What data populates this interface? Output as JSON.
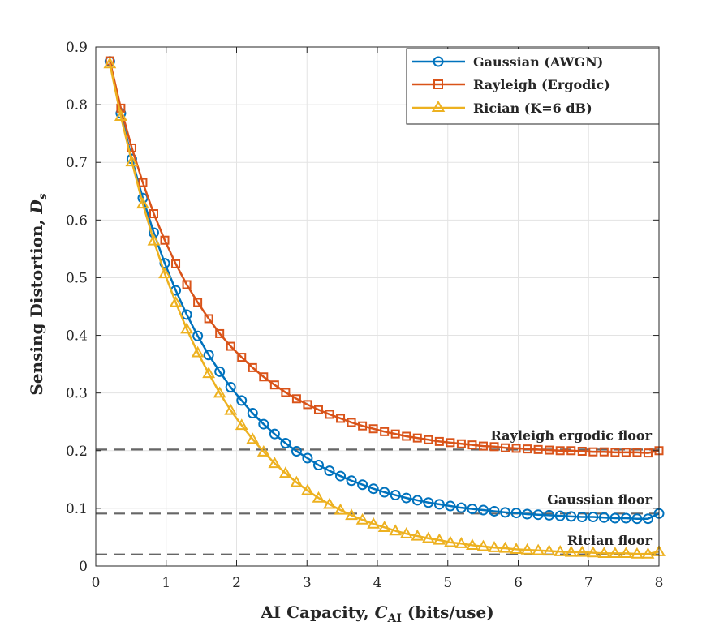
{
  "chart_data": {
    "type": "line",
    "title": "",
    "xlabel": {
      "prefix": "AI Capacity, ",
      "symbol": "C",
      "subscript": "AI",
      "suffix": " (bits/use)"
    },
    "ylabel": {
      "prefix": "Sensing Distortion, ",
      "symbol": "D",
      "subscript": "s"
    },
    "xlim": [
      0,
      8
    ],
    "ylim": [
      0,
      0.9
    ],
    "xticks": [
      0,
      1,
      2,
      3,
      4,
      5,
      6,
      7,
      8
    ],
    "xtick_labels": [
      "0",
      "1",
      "2",
      "3",
      "4",
      "5",
      "6",
      "7",
      "8"
    ],
    "yticks": [
      0,
      0.1,
      0.2,
      0.3,
      0.4,
      0.5,
      0.6,
      0.7,
      0.8,
      0.9
    ],
    "ytick_labels": [
      "0",
      "0.1",
      "0.2",
      "0.3",
      "0.4",
      "0.5",
      "0.6",
      "0.7",
      "0.8",
      "0.9"
    ],
    "grid": true,
    "legend_position": "top-right",
    "x": [
      0.2,
      0.356,
      0.512,
      0.668,
      0.824,
      0.98,
      1.136,
      1.292,
      1.448,
      1.604,
      1.76,
      1.916,
      2.072,
      2.228,
      2.384,
      2.54,
      2.696,
      2.852,
      3.008,
      3.164,
      3.32,
      3.476,
      3.632,
      3.788,
      3.944,
      4.1,
      4.256,
      4.412,
      4.568,
      4.724,
      4.88,
      5.036,
      5.192,
      5.348,
      5.504,
      5.66,
      5.816,
      5.972,
      6.128,
      6.284,
      6.44,
      6.596,
      6.752,
      6.908,
      7.064,
      7.22,
      7.376,
      7.532,
      7.688,
      7.844,
      8.0
    ],
    "series": [
      {
        "name": "Gaussian (AWGN)",
        "color": "#0072BD",
        "marker": "circle",
        "values": [
          0.875,
          0.785,
          0.706,
          0.638,
          0.578,
          0.525,
          0.478,
          0.436,
          0.399,
          0.366,
          0.337,
          0.31,
          0.287,
          0.265,
          0.246,
          0.229,
          0.213,
          0.199,
          0.187,
          0.175,
          0.165,
          0.156,
          0.148,
          0.141,
          0.134,
          0.128,
          0.123,
          0.118,
          0.114,
          0.11,
          0.107,
          0.104,
          0.101,
          0.099,
          0.097,
          0.095,
          0.093,
          0.092,
          0.09,
          0.089,
          0.088,
          0.087,
          0.086,
          0.085,
          0.085,
          0.084,
          0.083,
          0.083,
          0.082,
          0.082,
          0.091
        ]
      },
      {
        "name": "Rayleigh (Ergodic)",
        "color": "#D95319",
        "marker": "square",
        "values": [
          0.876,
          0.794,
          0.725,
          0.665,
          0.611,
          0.565,
          0.524,
          0.488,
          0.457,
          0.429,
          0.403,
          0.381,
          0.362,
          0.344,
          0.328,
          0.314,
          0.301,
          0.29,
          0.28,
          0.271,
          0.263,
          0.256,
          0.249,
          0.243,
          0.238,
          0.233,
          0.229,
          0.225,
          0.222,
          0.219,
          0.216,
          0.214,
          0.212,
          0.21,
          0.208,
          0.207,
          0.205,
          0.204,
          0.203,
          0.202,
          0.201,
          0.2,
          0.2,
          0.199,
          0.198,
          0.198,
          0.197,
          0.197,
          0.197,
          0.196,
          0.2
        ]
      },
      {
        "name": "Rician (K=6 dB)",
        "color": "#EDB120",
        "marker": "triangle",
        "values": [
          0.871,
          0.78,
          0.701,
          0.628,
          0.564,
          0.507,
          0.457,
          0.411,
          0.37,
          0.334,
          0.3,
          0.27,
          0.244,
          0.22,
          0.198,
          0.178,
          0.161,
          0.145,
          0.131,
          0.118,
          0.107,
          0.097,
          0.088,
          0.08,
          0.073,
          0.067,
          0.061,
          0.056,
          0.052,
          0.048,
          0.045,
          0.041,
          0.039,
          0.036,
          0.034,
          0.032,
          0.031,
          0.029,
          0.028,
          0.027,
          0.026,
          0.025,
          0.024,
          0.024,
          0.023,
          0.022,
          0.022,
          0.022,
          0.021,
          0.021,
          0.025
        ]
      }
    ],
    "reference_lines": [
      {
        "name": "Rayleigh ergodic floor",
        "value": 0.202,
        "label": "Rayleigh ergodic floor",
        "color": "#666666",
        "style": "dashed"
      },
      {
        "name": "Gaussian floor",
        "value": 0.091,
        "label": "Gaussian floor",
        "color": "#666666",
        "style": "dashed"
      },
      {
        "name": "Rician floor",
        "value": 0.02,
        "label": "Rician floor",
        "color": "#666666",
        "style": "dashed"
      }
    ]
  }
}
